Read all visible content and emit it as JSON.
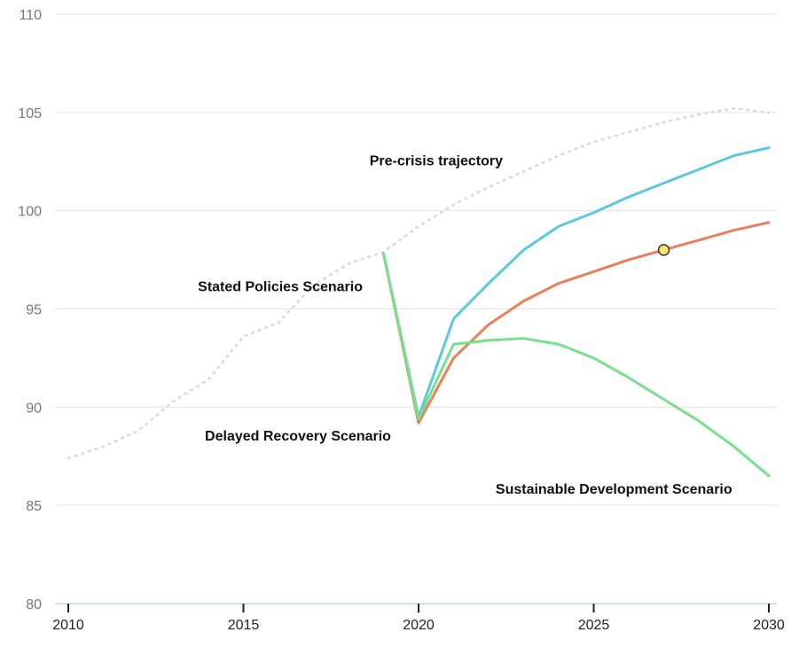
{
  "chart_data": {
    "type": "line",
    "title": "",
    "xlabel": "",
    "ylabel": "",
    "xlim": [
      2010,
      2030
    ],
    "ylim": [
      80,
      110
    ],
    "y_ticks": [
      80,
      85,
      90,
      95,
      100,
      105,
      110
    ],
    "x_ticks": [
      2010,
      2015,
      2020,
      2025,
      2030
    ],
    "grid": "horizontal",
    "series": [
      {
        "key": "precrisis",
        "color": "#d9d9d9",
        "style": "dotted",
        "x": [
          2010,
          2011,
          2012,
          2013,
          2014,
          2015,
          2016,
          2017,
          2018,
          2019,
          2020,
          2021,
          2022,
          2023,
          2024,
          2025,
          2026,
          2027,
          2028,
          2029,
          2030
        ],
        "y": [
          87.4,
          88.0,
          88.8,
          90.3,
          91.4,
          93.6,
          94.3,
          96.2,
          97.3,
          97.9,
          99.2,
          100.3,
          101.2,
          102.0,
          102.8,
          103.5,
          104.0,
          104.5,
          104.9,
          105.2,
          105.0
        ]
      },
      {
        "key": "stated",
        "color": "#5bc8e0",
        "style": "solid",
        "x": [
          2019,
          2020,
          2021,
          2022,
          2023,
          2024,
          2025,
          2026,
          2027,
          2028,
          2029,
          2030
        ],
        "y": [
          97.8,
          89.5,
          94.5,
          96.3,
          98.0,
          99.2,
          99.9,
          100.7,
          101.4,
          102.1,
          102.8,
          103.2
        ]
      },
      {
        "key": "delayed",
        "color": "#e8805a",
        "style": "solid",
        "x": [
          2019,
          2020,
          2021,
          2022,
          2023,
          2024,
          2025,
          2026,
          2027,
          2028,
          2029,
          2030
        ],
        "y": [
          97.8,
          89.2,
          92.5,
          94.2,
          95.4,
          96.3,
          96.9,
          97.5,
          98.0,
          98.5,
          99.0,
          99.4
        ]
      },
      {
        "key": "sustainable",
        "color": "#77e08e",
        "style": "solid",
        "x": [
          2019,
          2020,
          2021,
          2022,
          2023,
          2024,
          2025,
          2026,
          2027,
          2028,
          2029,
          2030
        ],
        "y": [
          97.8,
          89.4,
          93.2,
          93.4,
          93.5,
          93.2,
          92.5,
          91.5,
          90.4,
          89.3,
          88.0,
          86.5
        ]
      }
    ],
    "annotations": [
      {
        "text": "Pre-crisis trajectory",
        "x": 2018.6,
        "y": 102.3
      },
      {
        "text": "Stated Policies Scenario",
        "x": 2013.7,
        "y": 95.9
      },
      {
        "text": "Delayed Recovery Scenario",
        "x": 2013.9,
        "y": 88.3
      },
      {
        "text": "Sustainable Development Scenario",
        "x": 2022.2,
        "y": 85.6
      }
    ],
    "marker": {
      "x": 2027,
      "y": 98.0,
      "color": "#f5e66b"
    }
  }
}
